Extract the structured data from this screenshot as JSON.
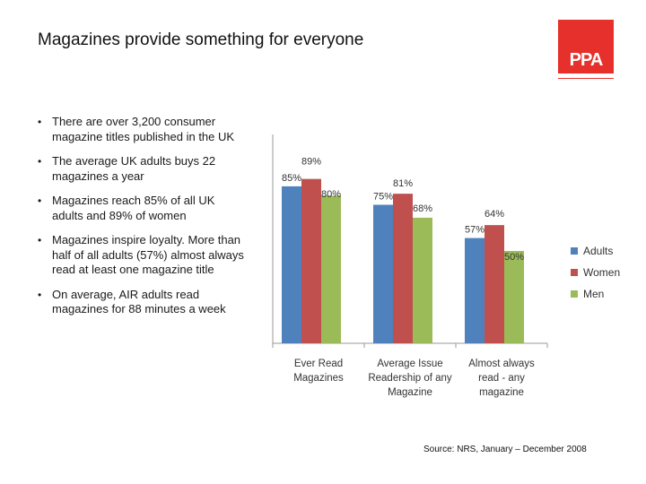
{
  "slide": {
    "title": "Magazines provide something for everyone",
    "logo_text": "PPA",
    "bullets": [
      "There are over 3,200 consumer magazine titles published in the UK",
      "The average UK adults buys 22 magazines a year",
      "Magazines reach 85% of all UK adults and 89% of women",
      "Magazines inspire loyalty. More than half of all adults (57%) almost always read at least one magazine title",
      "On average, AIR adults read magazines for 88 minutes a week"
    ],
    "source": "Source: NRS, January – December 2008"
  },
  "colors": {
    "logo": "#e5302b",
    "adults": "#4f81bd",
    "women": "#c0504d",
    "men": "#9bbb59"
  },
  "chart_data": {
    "type": "bar",
    "title": "",
    "xlabel": "",
    "ylabel": "",
    "ylim": [
      0,
      100
    ],
    "grid": false,
    "legend_position": "right",
    "categories": [
      [
        "Ever Read",
        "Magazines"
      ],
      [
        "Average Issue",
        "Readership of any",
        "Magazine"
      ],
      [
        "Almost always",
        "read - any",
        "magazine"
      ]
    ],
    "series": [
      {
        "name": "Adults",
        "color": "#4f81bd",
        "values": [
          85,
          75,
          57
        ],
        "labels": [
          "85%",
          "75%",
          "57%"
        ]
      },
      {
        "name": "Women",
        "color": "#c0504d",
        "values": [
          89,
          81,
          64
        ],
        "labels": [
          "89%",
          "81%",
          "64%"
        ]
      },
      {
        "name": "Men",
        "color": "#9bbb59",
        "values": [
          80,
          68,
          50
        ],
        "labels": [
          "80%",
          "68%",
          "50%"
        ]
      }
    ]
  }
}
